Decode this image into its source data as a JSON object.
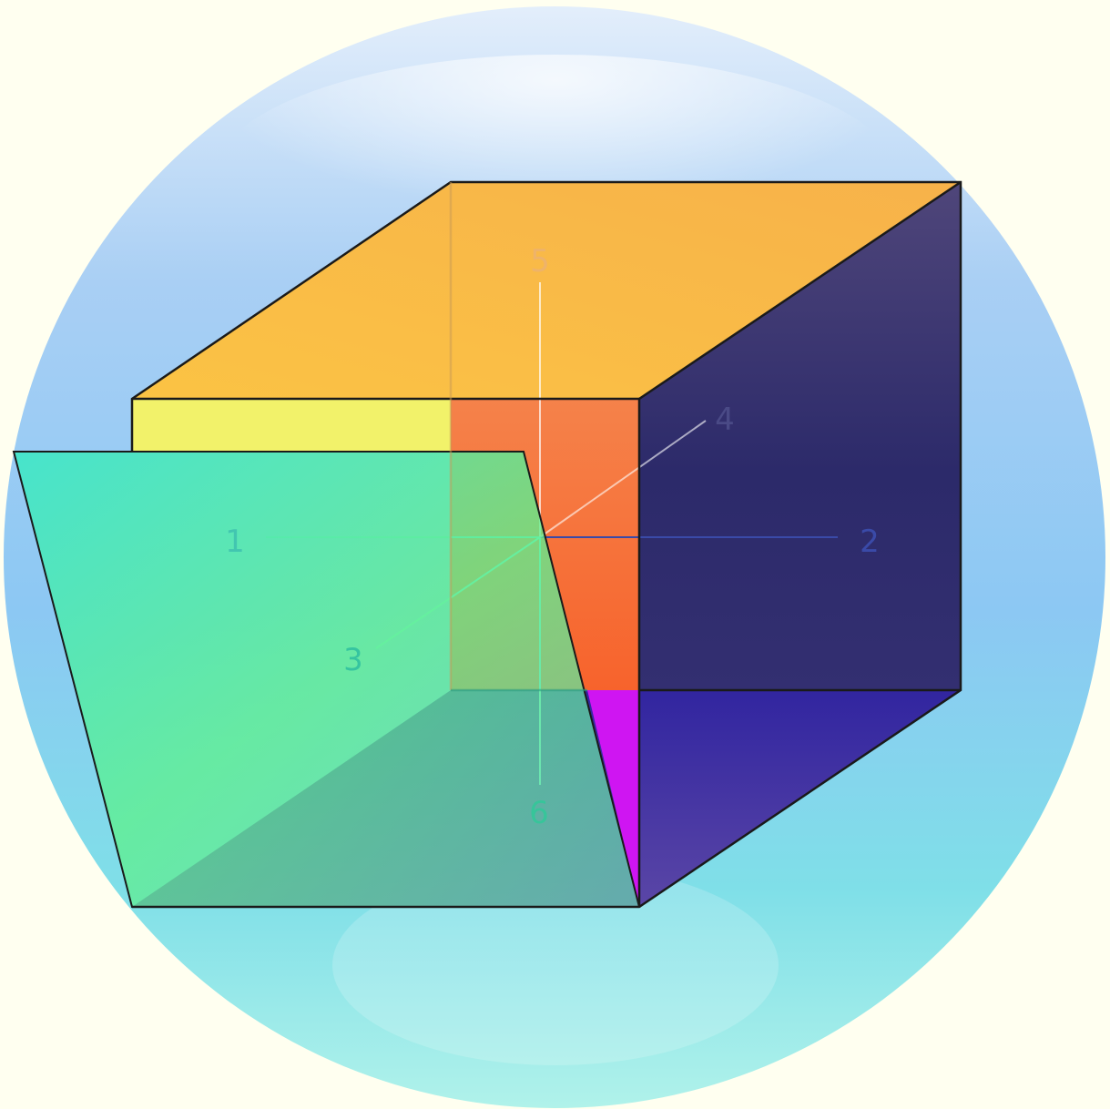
{
  "diagram": {
    "axis_labels": {
      "left": "1",
      "right": "2",
      "front": "3",
      "back": "4",
      "top": "5",
      "bottom": "6"
    },
    "colors": {
      "background": "#fffff0",
      "sphere_top": "#dbeafb",
      "sphere_mid": "#8ec4f4",
      "sphere_bottom": "#a8efe8",
      "top_face": "#f7c25c",
      "right_face": "#2b2a6a",
      "bottom_face": "#3c2a9a",
      "back_wall": "#f46a35",
      "yellow_band": "#f2f16a",
      "magenta_strip": "#cc18f0",
      "front_panel": "#58ecaa",
      "cube_edges": "#1a1a1a"
    }
  }
}
